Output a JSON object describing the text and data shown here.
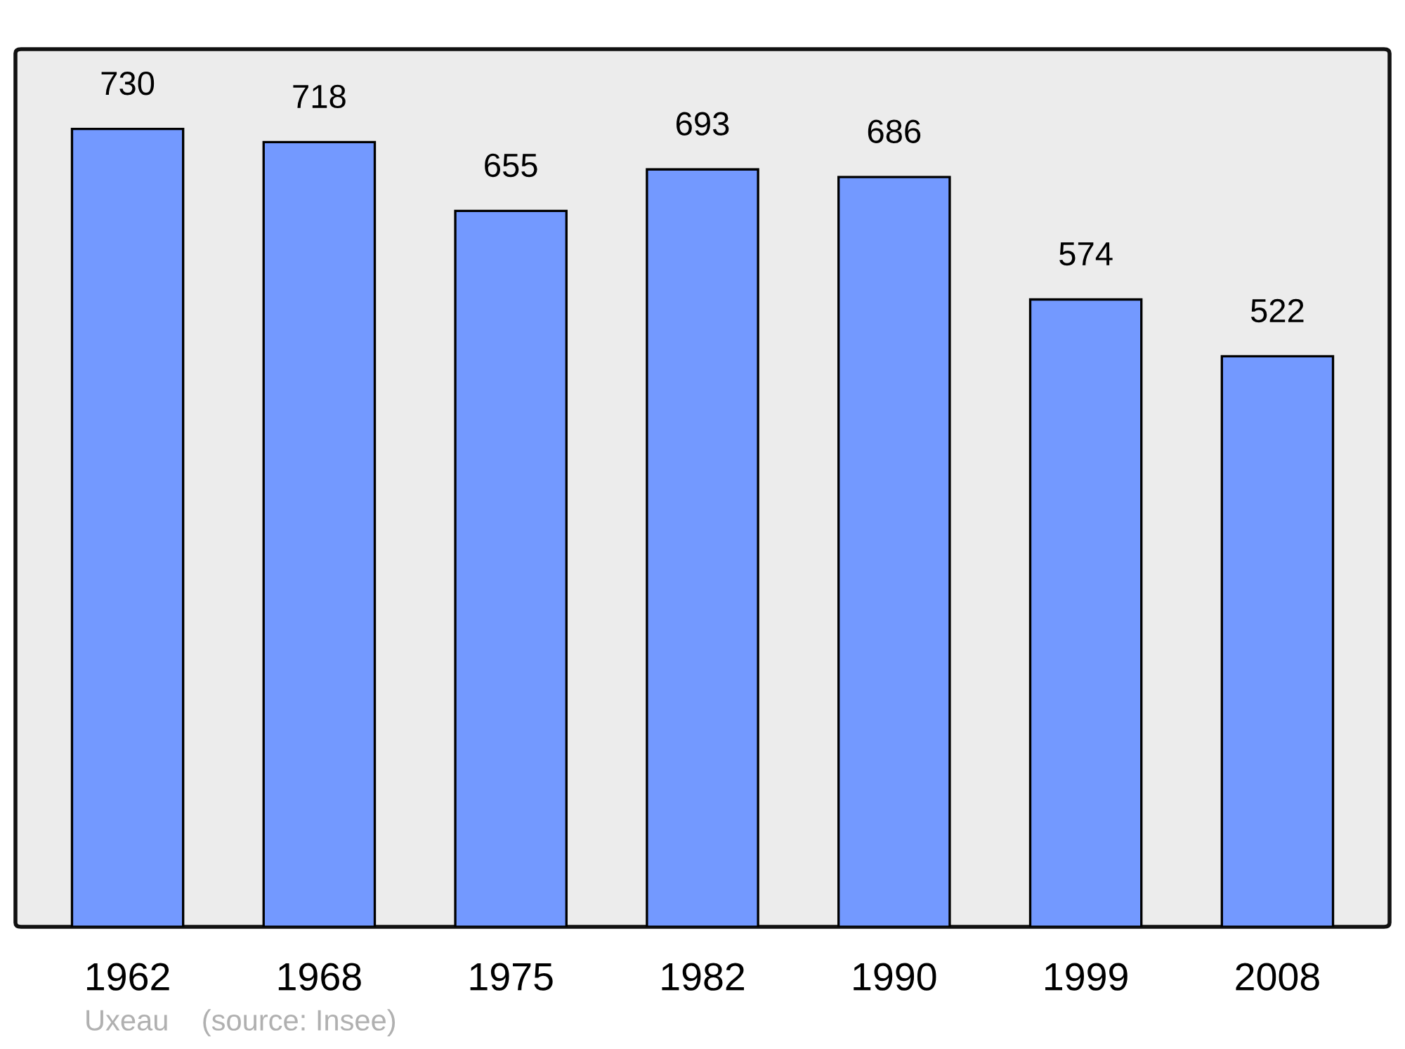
{
  "chart_data": {
    "type": "bar",
    "categories": [
      "1962",
      "1968",
      "1975",
      "1982",
      "1990",
      "1999",
      "2008"
    ],
    "values": [
      730,
      718,
      655,
      693,
      686,
      574,
      522
    ],
    "color": "#7399ff",
    "data_labels": true,
    "grid": false,
    "legend": false,
    "tick_labels": "x",
    "annotations": [
      "Uxeau    (source: Insee)"
    ]
  }
}
